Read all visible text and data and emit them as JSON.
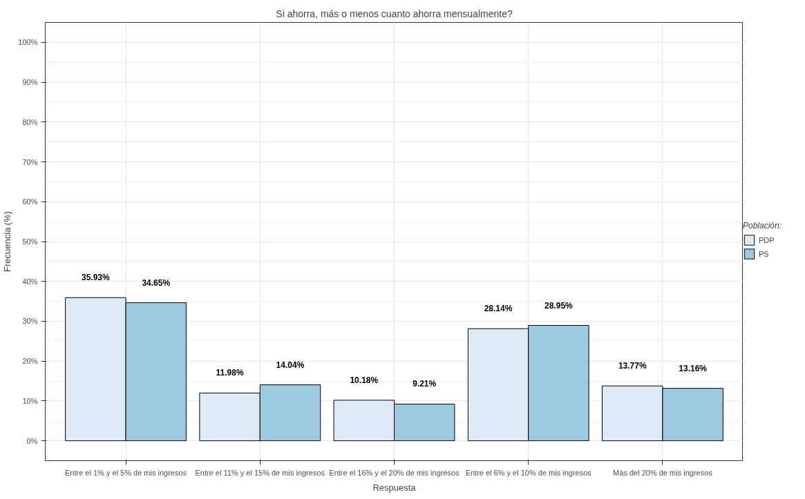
{
  "chart_data": {
    "type": "bar",
    "title": "Si ahorra, más o menos cuanto ahorra mensualmente?",
    "xlabel": "Respuesta",
    "ylabel": "Frecuencia (%)",
    "legend_title": "Población:",
    "categories": [
      "Entre el 1% y el 5% de mis ingresos",
      "Entre el 11% y el 15% de mis ingresos",
      "Entre el 16% y el 20% de mis ingresos",
      "Entre el 6% y el 10% de mis ingresos",
      "Más del 20% de mis ingresos"
    ],
    "series": [
      {
        "name": "PDP",
        "color": "#deebf7",
        "values": [
          35.93,
          11.98,
          10.18,
          28.14,
          13.77
        ],
        "value_labels": [
          "35.93%",
          "11.98%",
          "10.18%",
          "28.14%",
          "13.77%"
        ]
      },
      {
        "name": "PS",
        "color": "#9ecae1",
        "values": [
          34.65,
          14.04,
          9.21,
          28.95,
          13.16
        ],
        "value_labels": [
          "34.65%",
          "14.04%",
          "9.21%",
          "28.95%",
          "13.16%"
        ]
      }
    ],
    "ylim": [
      -5,
      105
    ],
    "yticks": [
      {
        "value": 0,
        "label": "0%"
      },
      {
        "value": 10,
        "label": "10%"
      },
      {
        "value": 20,
        "label": "20%"
      },
      {
        "value": 30,
        "label": "30%"
      },
      {
        "value": 40,
        "label": "40%"
      },
      {
        "value": 50,
        "label": "50%"
      },
      {
        "value": 60,
        "label": "60%"
      },
      {
        "value": 70,
        "label": "70%"
      },
      {
        "value": 80,
        "label": "80%"
      },
      {
        "value": 90,
        "label": "90%"
      },
      {
        "value": 100,
        "label": "100%"
      }
    ],
    "grid": true,
    "legend": "right"
  }
}
